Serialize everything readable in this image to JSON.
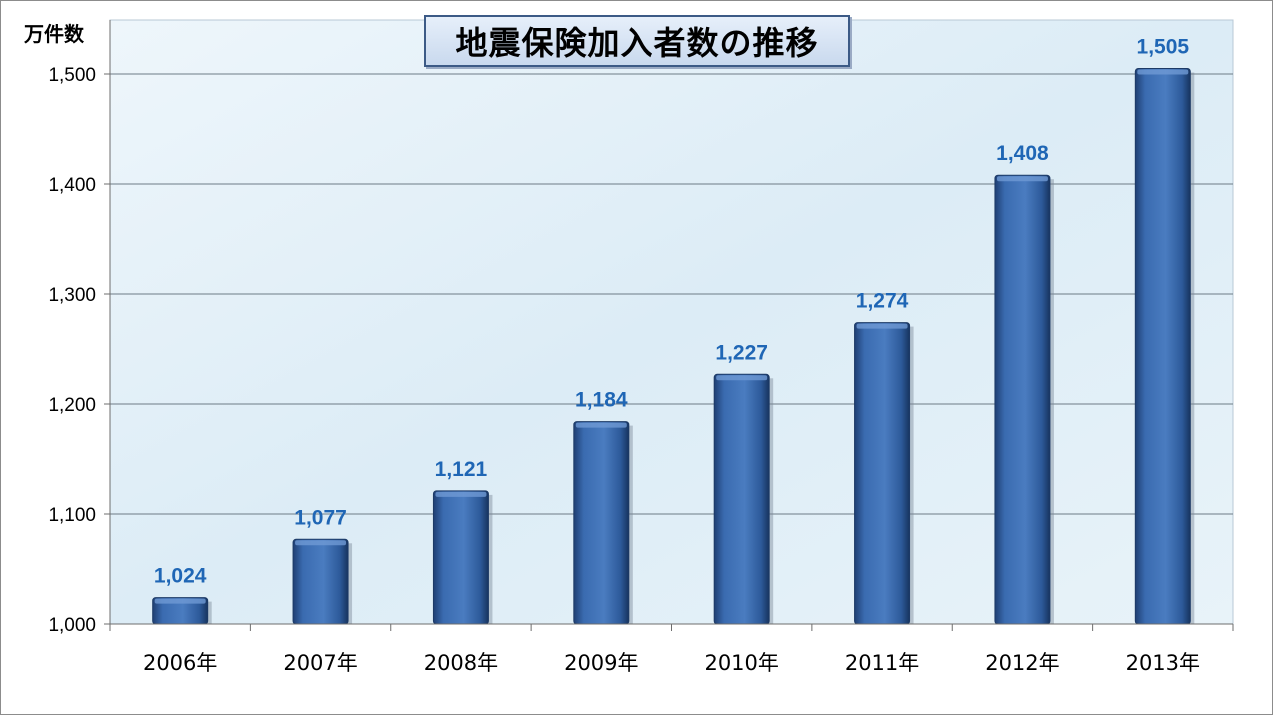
{
  "chart_data": {
    "type": "bar",
    "title": "地震保険加入者数の推移",
    "ylabel": "万件数",
    "xlabel": "",
    "categories": [
      "2006年",
      "2007年",
      "2008年",
      "2009年",
      "2010年",
      "2011年",
      "2012年",
      "2013年"
    ],
    "values": [
      1024,
      1077,
      1121,
      1184,
      1227,
      1274,
      1408,
      1505
    ],
    "value_labels": [
      "1,024",
      "1,077",
      "1,121",
      "1,184",
      "1,227",
      "1,274",
      "1,408",
      "1,505"
    ],
    "ylim": [
      1000,
      1500
    ],
    "yticks": [
      1000,
      1100,
      1200,
      1300,
      1400,
      1500
    ],
    "ytick_labels": [
      "1,000",
      "1,100",
      "1,200",
      "1,300",
      "1,400",
      "1,500"
    ],
    "grid": true,
    "legend": "none",
    "colors": {
      "bar": "#3a6bb0",
      "data_label": "#1f66b5",
      "plot_bg": "#e3f0f8"
    }
  }
}
